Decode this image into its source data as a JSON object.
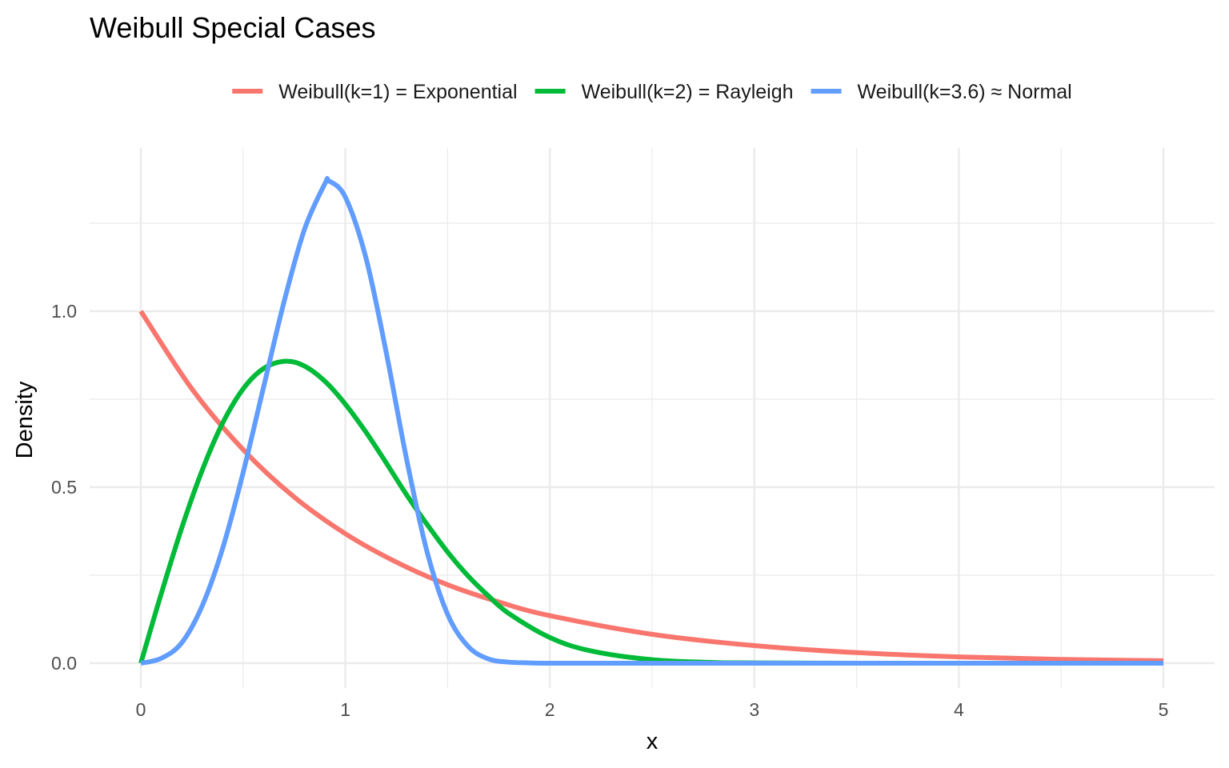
{
  "chart_data": {
    "type": "line",
    "title": "Weibull Special Cases",
    "xlabel": "x",
    "ylabel": "Density",
    "xlim": [
      0,
      5
    ],
    "ylim": [
      0,
      1.3
    ],
    "x_ticks": [
      0,
      1,
      2,
      3,
      4,
      5
    ],
    "x_tick_labels": [
      "0",
      "1",
      "2",
      "3",
      "4",
      "5"
    ],
    "y_ticks": [
      0.0,
      0.5,
      1.0
    ],
    "y_tick_labels": [
      "0.0",
      "0.5",
      "1.0"
    ],
    "grid": true,
    "legend_position": "top",
    "series": [
      {
        "name": "Weibull(k=1) = Exponential",
        "color": "#F8766D",
        "x": [
          0,
          0.25,
          0.5,
          0.75,
          1.0,
          1.25,
          1.5,
          1.75,
          2.0,
          2.5,
          3.0,
          3.5,
          4.0,
          4.5,
          5.0
        ],
        "values": [
          1.0,
          0.779,
          0.607,
          0.472,
          0.368,
          0.287,
          0.223,
          0.174,
          0.135,
          0.082,
          0.05,
          0.03,
          0.018,
          0.011,
          0.007
        ]
      },
      {
        "name": "Weibull(k=2) = Rayleigh",
        "color": "#00BA38",
        "x": [
          0,
          0.1,
          0.2,
          0.3,
          0.4,
          0.5,
          0.6,
          0.707,
          0.8,
          0.9,
          1.0,
          1.1,
          1.2,
          1.3,
          1.4,
          1.5,
          1.6,
          1.7,
          1.8,
          2.0,
          2.2,
          2.5,
          2.8,
          3.0,
          3.5,
          4.0,
          5.0
        ],
        "values": [
          0,
          0.198,
          0.384,
          0.548,
          0.682,
          0.779,
          0.837,
          0.858,
          0.844,
          0.801,
          0.736,
          0.657,
          0.569,
          0.478,
          0.394,
          0.316,
          0.248,
          0.191,
          0.141,
          0.073,
          0.035,
          0.01,
          0.002,
          0.001,
          0,
          0,
          0
        ]
      },
      {
        "name": "Weibull(k=3.6) ≈ Normal",
        "color": "#619CFF",
        "x": [
          0,
          0.1,
          0.2,
          0.3,
          0.4,
          0.5,
          0.6,
          0.7,
          0.8,
          0.9,
          0.92,
          1.0,
          1.1,
          1.2,
          1.3,
          1.4,
          1.5,
          1.6,
          1.7,
          1.8,
          1.9,
          2.0,
          2.5,
          3.0,
          4.0,
          5.0
        ],
        "values": [
          0,
          0.014,
          0.058,
          0.163,
          0.326,
          0.541,
          0.784,
          1.026,
          1.232,
          1.362,
          1.37,
          1.324,
          1.153,
          0.883,
          0.578,
          0.316,
          0.139,
          0.048,
          0.012,
          0.003,
          0.001,
          0,
          0,
          0,
          0,
          0
        ]
      }
    ]
  }
}
